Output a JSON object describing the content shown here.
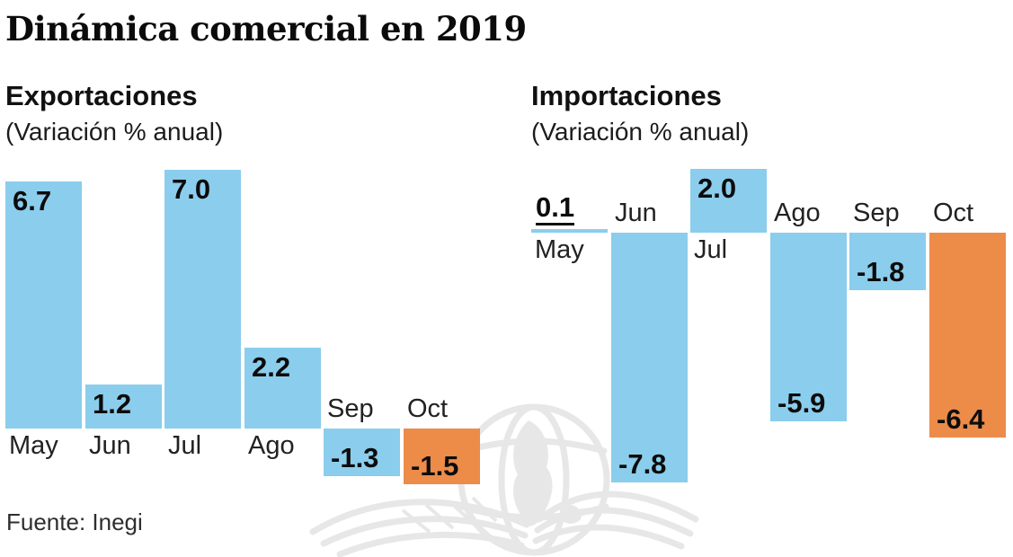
{
  "title": "Dinámica comercial en 2019",
  "source": "Fuente: Inegi",
  "colors": {
    "bar": "#8BCDEC",
    "highlight_bar": "#ED8B49",
    "value_text": "#0c0c0c",
    "month_text": "#222222",
    "watermark": "#e7e7e7"
  },
  "icons": {
    "watermark": "winged-globe-watermark-icon"
  },
  "chart_data": [
    {
      "type": "bar",
      "title": "Exportaciones",
      "subtitle": "(Variación % anual)",
      "categories": [
        "May",
        "Jun",
        "Jul",
        "Ago",
        "Sep",
        "Oct"
      ],
      "values": [
        6.7,
        1.2,
        7.0,
        2.2,
        -1.3,
        -1.5
      ],
      "value_labels": [
        "6.7",
        "1.2",
        "7.0",
        "2.2",
        "-1.3",
        "-1.5"
      ],
      "highlight_index": 5,
      "ylim": [
        -8,
        7.5
      ],
      "grid": false,
      "legend": false
    },
    {
      "type": "bar",
      "title": "Importaciones",
      "subtitle": "(Variación % anual)",
      "categories": [
        "May",
        "Jun",
        "Jul",
        "Ago",
        "Sep",
        "Oct"
      ],
      "values": [
        0.1,
        -7.8,
        2.0,
        -5.9,
        -1.8,
        -6.4
      ],
      "value_labels": [
        "0.1",
        "-7.8",
        "2.0",
        "-5.9",
        "-1.8",
        "-6.4"
      ],
      "highlight_index": 5,
      "ylim": [
        -8,
        7.5
      ],
      "grid": false,
      "legend": false
    }
  ]
}
